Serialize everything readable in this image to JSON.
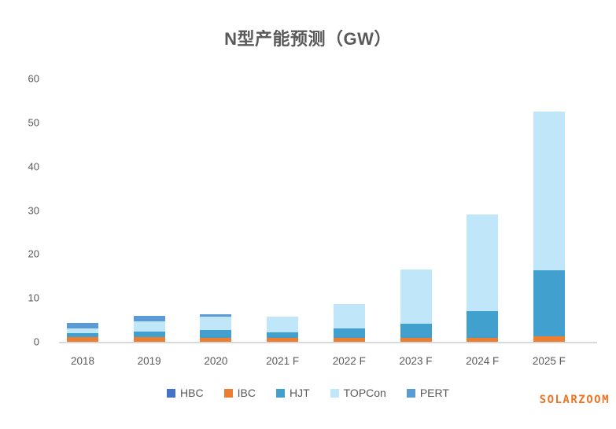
{
  "watermark": "SOLARZOOM",
  "colors": {
    "title_text": "#595959",
    "axis_text": "#595959",
    "axis_line": "#d9d9d9",
    "watermark": "#ee7423",
    "background": "#ffffff"
  },
  "chart_data": {
    "type": "bar",
    "stacked": true,
    "title": "N型产能预测（GW）",
    "categories": [
      "2018",
      "2019",
      "2020",
      "2021 F",
      "2022 F",
      "2023 F",
      "2024 F",
      "2025 F"
    ],
    "series": [
      {
        "name": "HBC",
        "color": "#4472c4",
        "values": [
          0,
          0,
          0,
          0,
          0,
          0,
          0,
          0
        ]
      },
      {
        "name": "IBC",
        "color": "#ed7d31",
        "values": [
          1.0,
          1.0,
          0.9,
          0.9,
          0.9,
          0.9,
          0.9,
          1.2
        ]
      },
      {
        "name": "HJT",
        "color": "#41a0cd",
        "values": [
          1.0,
          1.4,
          1.8,
          1.3,
          2.1,
          3.3,
          6.0,
          15.1
        ]
      },
      {
        "name": "TOPCon",
        "color": "#c0e7f9",
        "values": [
          1.1,
          2.2,
          3.0,
          3.5,
          5.6,
          12.3,
          22.2,
          36.1
        ]
      },
      {
        "name": "PERT",
        "color": "#5b9bd5",
        "values": [
          1.2,
          1.4,
          0.6,
          0,
          0,
          0,
          0,
          0
        ]
      }
    ],
    "totals": [
      4.3,
      6.0,
      6.3,
      5.7,
      8.6,
      16.5,
      29.1,
      52.4
    ],
    "ylim": [
      0,
      60
    ],
    "yticks": [
      0,
      10,
      20,
      30,
      40,
      50,
      60
    ],
    "ylabel": "",
    "xlabel": "",
    "grid": false,
    "legend_position": "bottom"
  }
}
